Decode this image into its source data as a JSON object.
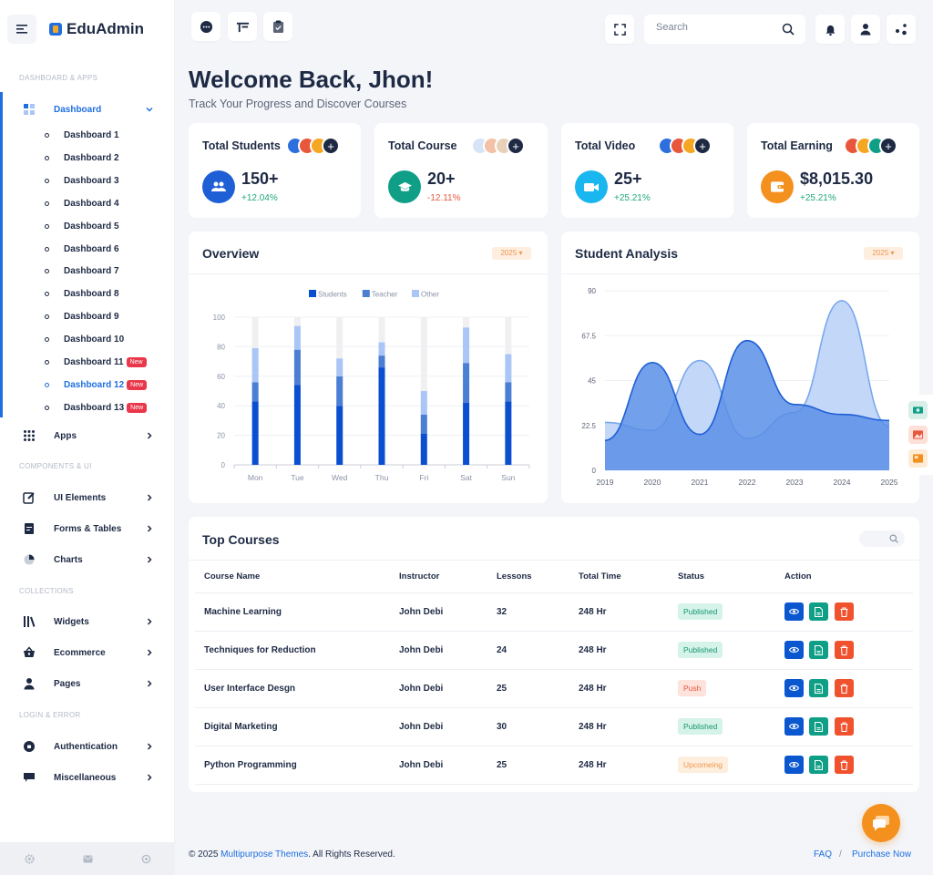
{
  "brand": {
    "name": "EduAdmin"
  },
  "sidebar": {
    "sections": [
      "DASHBOARD & APPS",
      "COMPONENTS & UI",
      "COLLECTIONS",
      "LOGIN & ERROR"
    ],
    "dashboard_label": "Dashboard",
    "sub_items": [
      "Dashboard 1",
      "Dashboard 2",
      "Dashboard 3",
      "Dashboard 4",
      "Dashboard 5",
      "Dashboard 6",
      "Dashboard 7",
      "Dashboard 8",
      "Dashboard 9",
      "Dashboard 10",
      "Dashboard 11",
      "Dashboard 12",
      "Dashboard 13"
    ],
    "new_badge": "New",
    "items": [
      "Apps",
      "UI Elements",
      "Forms & Tables",
      "Charts",
      "Widgets",
      "Ecommerce",
      "Pages",
      "Authentication",
      "Miscellaneous"
    ]
  },
  "search": {
    "placeholder": "Search"
  },
  "header": {
    "title": "Welcome Back, Jhon!",
    "subtitle": "Track Your Progress and Discover Courses"
  },
  "stats": [
    {
      "title": "Total Students",
      "value": "150+",
      "change": "+12.04%",
      "color": "#1f5fd6",
      "change_color": "#20a876"
    },
    {
      "title": "Total Course",
      "value": "20+",
      "change": "-12.11%",
      "color": "#0f9f86",
      "change_color": "#e8573c"
    },
    {
      "title": "Total Video",
      "value": "25+",
      "change": "+25.21%",
      "color": "#1ab6f0",
      "change_color": "#20a876"
    },
    {
      "title": "Total Earning",
      "value": "$8,015.30",
      "change": "+25.21%",
      "color": "#f4901e",
      "change_color": "#20a876"
    }
  ],
  "overview": {
    "title": "Overview",
    "year": "2025"
  },
  "analysis": {
    "title": "Student Analysis",
    "year": "2025"
  },
  "chart_data": [
    {
      "type": "bar",
      "stacked": true,
      "categories": [
        "Mon",
        "Tue",
        "Wed",
        "Thu",
        "Fri",
        "Sat",
        "Sun"
      ],
      "series": [
        {
          "name": "Students",
          "color": "#0b4fd1",
          "values": [
            43,
            54,
            40,
            66,
            21,
            42,
            43
          ]
        },
        {
          "name": "Teacher",
          "color": "#4a7fd4",
          "values": [
            13,
            24,
            20,
            8,
            13,
            27,
            13
          ]
        },
        {
          "name": "Other",
          "color": "#a9c6f6",
          "values": [
            23,
            16,
            12,
            9,
            16,
            24,
            19
          ]
        }
      ],
      "ylim": [
        0,
        100
      ],
      "yticks": [
        0,
        20,
        40,
        60,
        80,
        100
      ],
      "legend": "top",
      "grid": true
    },
    {
      "type": "area",
      "x": [
        "2019",
        "2020",
        "2021",
        "2022",
        "2023",
        "2024",
        "2025"
      ],
      "series": [
        {
          "color": "#5b8fe6",
          "values": [
            15,
            54,
            18,
            65,
            33,
            28,
            25
          ]
        },
        {
          "color": "#bcd3f7",
          "values": [
            24,
            20,
            55,
            16,
            29,
            85,
            22
          ]
        }
      ],
      "ylim": [
        0,
        90
      ],
      "yticks": [
        0,
        22.5,
        45,
        67.5,
        90
      ],
      "grid": true
    }
  ],
  "courses": {
    "title": "Top Courses",
    "columns": [
      "Course Name",
      "Instructor",
      "Lessons",
      "Total Time",
      "Status",
      "Action"
    ],
    "rows": [
      {
        "name": "Machine Learning",
        "instructor": "John Debi",
        "lessons": "32",
        "time": "248 Hr",
        "status": "Published"
      },
      {
        "name": "Techniques for Reduction",
        "instructor": "John Debi",
        "lessons": "24",
        "time": "248 Hr",
        "status": "Published"
      },
      {
        "name": "User Interface Desgn",
        "instructor": "John Debi",
        "lessons": "25",
        "time": "248 Hr",
        "status": "Push"
      },
      {
        "name": "Digital Marketing",
        "instructor": "John Debi",
        "lessons": "30",
        "time": "248 Hr",
        "status": "Published"
      },
      {
        "name": "Python Programming",
        "instructor": "John Debi",
        "lessons": "25",
        "time": "248 Hr",
        "status": "Upcomeing"
      }
    ]
  },
  "footer": {
    "copyright_pre": "© 2025 ",
    "company": "Multipurpose Themes",
    "copyright_post": ". All Rights Reserved.",
    "faq": "FAQ",
    "sep": "/",
    "purchase": "Purchase Now"
  },
  "colors": {
    "primary": "#1f6fe0",
    "accent": "#f4901e",
    "danger": "#e9384b",
    "success": "#0f9f86"
  }
}
